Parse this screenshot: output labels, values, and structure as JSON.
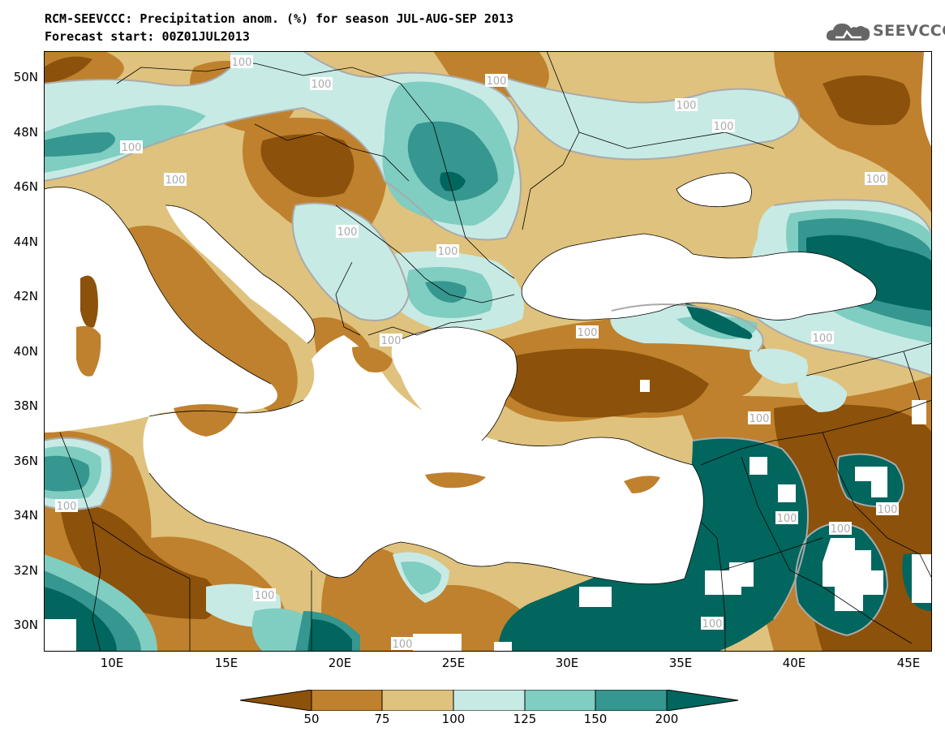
{
  "title": {
    "line1": "RCM-SEEVCCC: Precipitation anom. (%) for season JUL-AUG-SEP 2013",
    "line2": "Forecast start: 00Z01JUL2013"
  },
  "logo": {
    "text": "SEEVCCC",
    "icon": "cloud-icon"
  },
  "map": {
    "lon_range": [
      7,
      46
    ],
    "lat_range": [
      29,
      51
    ],
    "lat_ticks": [
      "50N",
      "48N",
      "46N",
      "44N",
      "42N",
      "40N",
      "38N",
      "36N",
      "34N",
      "32N",
      "30N"
    ],
    "lon_ticks": [
      "10E",
      "15E",
      "20E",
      "25E",
      "30E",
      "35E",
      "40E",
      "45E"
    ],
    "contour_label": "100",
    "colors": {
      "lt50": "#8c510a",
      "c50_75": "#bf812d",
      "c75_100": "#dfc27d",
      "c100_125": "#c7eae5",
      "c125_150": "#80cdc1",
      "c150_200": "#35978f",
      "gt200": "#01665e",
      "sea": "#ffffff",
      "contour": "#aaaaaa"
    }
  },
  "colorbar": {
    "labels": [
      "50",
      "75",
      "100",
      "125",
      "150",
      "200"
    ],
    "colors": [
      "#8c510a",
      "#bf812d",
      "#dfc27d",
      "#c7eae5",
      "#80cdc1",
      "#35978f",
      "#01665e"
    ]
  }
}
